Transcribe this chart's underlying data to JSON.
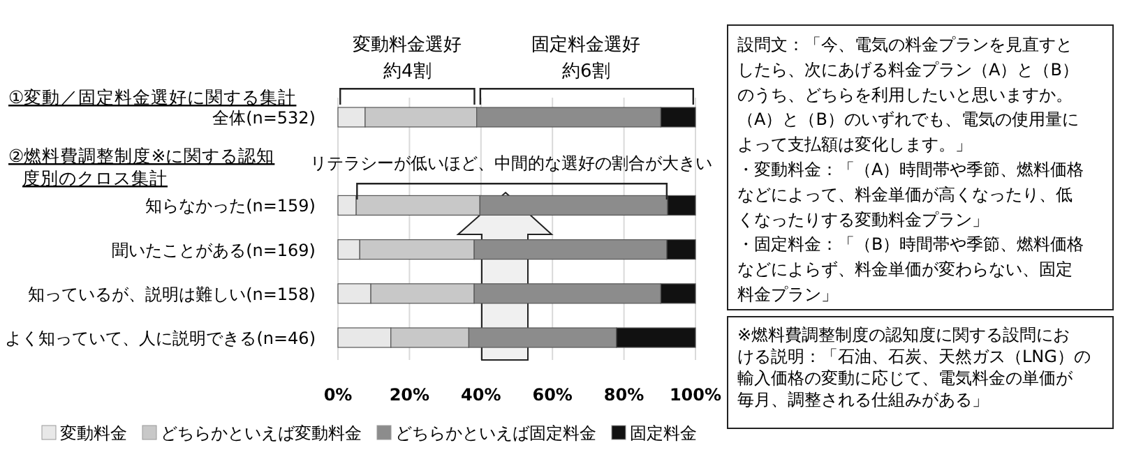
{
  "chart_data": {
    "type": "bar",
    "orientation": "horizontal",
    "stacked": true,
    "categories": [
      "全体(n=532)",
      null,
      "知らなかった(n=159)",
      "聞いたことがある(n=169)",
      "知っているが、説明は難しい(n=158)",
      "よく知っていて、人に説明できる(n=46)"
    ],
    "series": [
      {
        "name": "変動料金",
        "color": "#e8e8e8",
        "values": [
          7.6,
          null,
          5.1,
          6.1,
          9.2,
          14.8
        ]
      },
      {
        "name": "どちらかといえば変動料金",
        "color": "#c8c8c8",
        "values": [
          31.2,
          null,
          34.6,
          32.0,
          28.9,
          21.8
        ]
      },
      {
        "name": "どちらかといえば固定料金",
        "color": "#8c8c8c",
        "values": [
          51.5,
          null,
          52.5,
          53.9,
          52.2,
          41.3
        ]
      },
      {
        "name": "固定料金",
        "color": "#111111",
        "values": [
          9.7,
          null,
          7.8,
          8.0,
          9.7,
          22.1
        ]
      }
    ],
    "xlim": [
      0,
      100
    ],
    "xticks": [
      {
        "value": 0,
        "label": "0%"
      },
      {
        "value": 20,
        "label": "20%"
      },
      {
        "value": 40,
        "label": "40%"
      },
      {
        "value": 60,
        "label": "60%"
      },
      {
        "value": 80,
        "label": "80%"
      },
      {
        "value": 100,
        "label": "100%"
      }
    ],
    "grid": "x",
    "legend": "bottom",
    "annotations": [
      "①変動／固定料金選好に関する集計",
      "②燃料費調整制度※に関する認知度別のクロス集計",
      "変動料金選好約4割",
      "固定料金選好約6割",
      "リテラシーが低いほど、中間的な選好の割合が大きい",
      "設問文：「今、電気の料金プランを見直すとしたら、次にあげる料金プラン（A）と（B）のうち、どちらを利用したいと思いますか。（A）と（B）のいずれでも、電気の使用量によって支払額は変化します。」・変動料金：「（A）時間帯や季節、燃料価格などによって、料金単価が高くなったり、低くなったりする変動料金プラン」・固定料金：「（B）時間帯や季節、燃料価格などによらず、料金単価が変わらない、固定料金プラン」",
      "※燃料費調整制度の認知度に関する設問における説明：「石油、石炭、天然ガス（LNG）の輸入価格の変動に応じて、電気料金の単価が毎月、調整される仕組みがある」"
    ]
  }
}
